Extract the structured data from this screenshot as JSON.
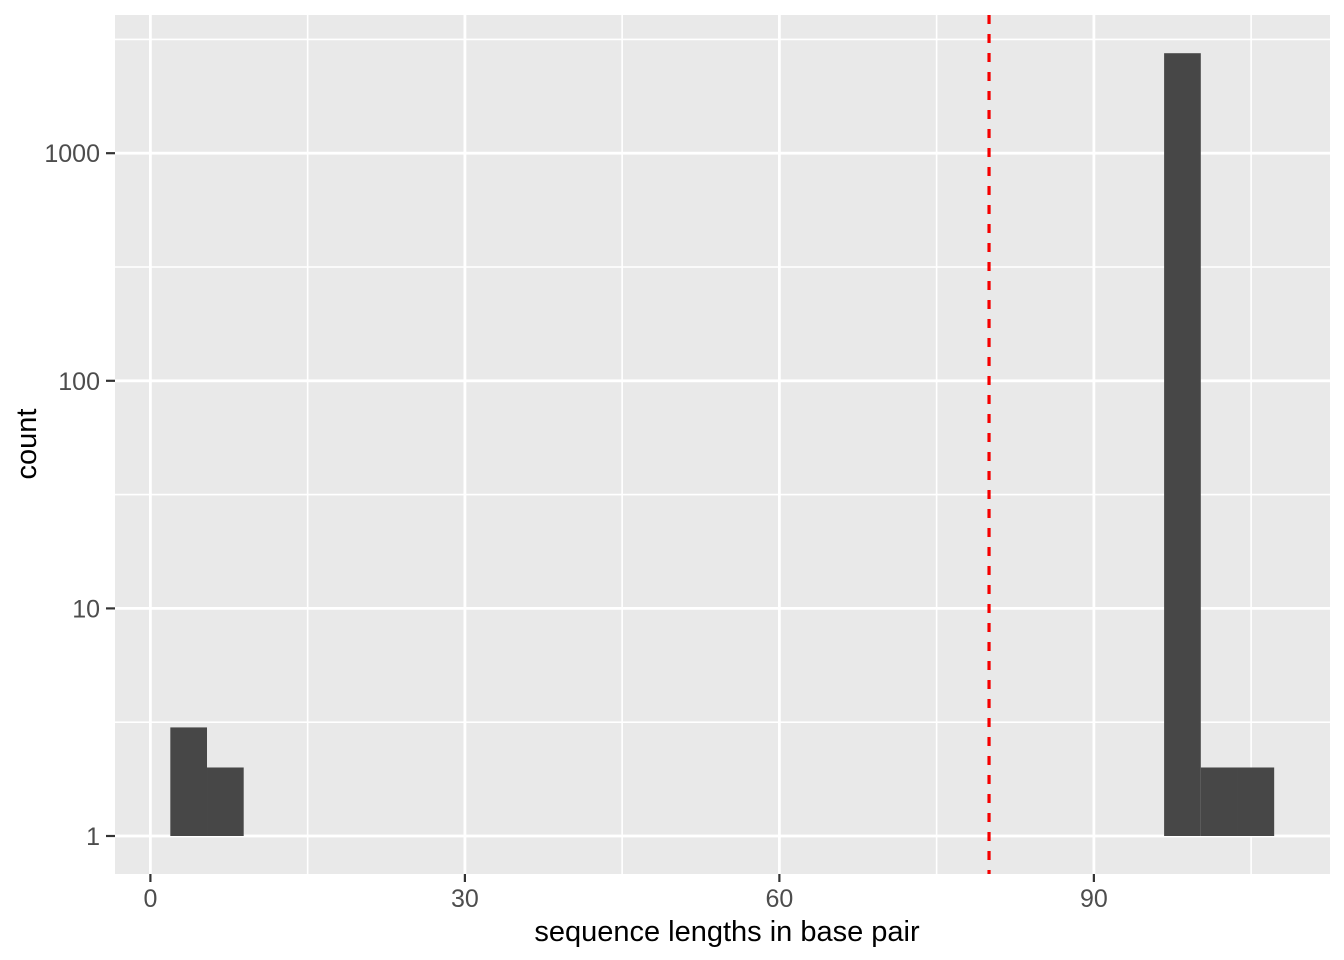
{
  "chart_data": {
    "type": "histogram",
    "title": "",
    "xlabel": "sequence lengths in base pair",
    "ylabel": "count",
    "x_ticks": [
      0,
      30,
      60,
      90
    ],
    "x_minor_ticks": [
      15,
      45,
      75,
      105
    ],
    "x_tick_labels": [
      "0",
      "30",
      "60",
      "90"
    ],
    "y_scale": "log10",
    "y_ticks": [
      1,
      10,
      100,
      1000
    ],
    "y_tick_labels": [
      "1",
      "10",
      "100",
      "1000"
    ],
    "xlim": [
      -3.4,
      112.5
    ],
    "ylim": [
      0.68,
      4050
    ],
    "binwidth": 3.5,
    "bars": [
      {
        "x0": 1.9,
        "x1": 5.4,
        "count": 3
      },
      {
        "x0": 5.4,
        "x1": 8.9,
        "count": 2
      },
      {
        "x0": 96.7,
        "x1": 100.2,
        "count": 2750
      },
      {
        "x0": 100.2,
        "x1": 103.7,
        "count": 2
      },
      {
        "x0": 103.7,
        "x1": 107.2,
        "count": 2
      }
    ],
    "vline": {
      "x": 80,
      "style": "dashed"
    },
    "grid": "on",
    "legend": "none",
    "colors": {
      "bar": "#474747",
      "panel_bg": "#e9e9e9",
      "grid_major": "#ffffff",
      "grid_minor": "#ffffff",
      "vline": "#f50000",
      "tick_mark": "#333333",
      "tick_text": "#4d4d4d",
      "axis_title": "#000000",
      "figure_bg": "#ffffff"
    }
  }
}
